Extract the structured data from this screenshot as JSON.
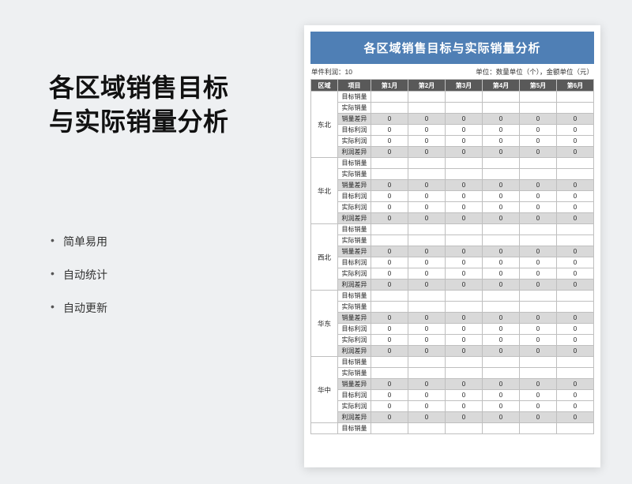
{
  "left": {
    "title_line1": "各区域销售目标",
    "title_line2": "与实际销量分析",
    "features": [
      "简单易用",
      "自动统计",
      "自动更新"
    ]
  },
  "sheet": {
    "banner": "各区域销售目标与实际销量分析",
    "meta_left": "单件利润：10",
    "meta_right": "单位：数量单位（个），金额单位（元）",
    "colors": {
      "banner_bg": "#4f7fb5",
      "header_bg": "#595959",
      "shade_bg": "#d9d9d9",
      "border": "#bfbfbf",
      "page_bg": "#eef0f2",
      "sheet_bg": "#ffffff"
    },
    "columns": [
      "区域",
      "项目",
      "第1月",
      "第2月",
      "第3月",
      "第4月",
      "第5月",
      "第6月"
    ],
    "item_labels": [
      "目标销量",
      "实际销量",
      "销量差异",
      "目标利润",
      "实际利润",
      "利润差异"
    ],
    "row_shaded": [
      false,
      false,
      true,
      false,
      false,
      true
    ],
    "row_has_values": [
      false,
      false,
      true,
      true,
      true,
      true
    ],
    "zero": "0",
    "regions": [
      "东北",
      "华北",
      "西北",
      "华东",
      "华中"
    ],
    "tail": {
      "region_blank": "",
      "item": "目标销量"
    }
  }
}
